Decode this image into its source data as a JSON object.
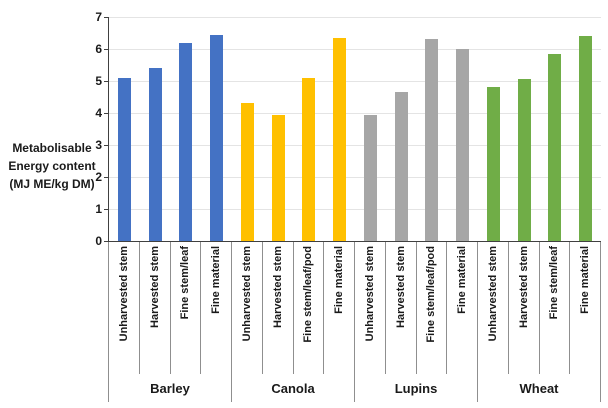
{
  "chart_data": {
    "type": "bar",
    "title": "",
    "ylabel_lines": [
      "Metabolisable",
      "Energy content",
      "(MJ ME/kg DM)"
    ],
    "ylim": [
      0,
      7
    ],
    "yticks": [
      0,
      1,
      2,
      3,
      4,
      5,
      6,
      7
    ],
    "grid": true,
    "legend": "none",
    "groups": [
      {
        "name": "Barley",
        "color": "#4472C4",
        "categories": [
          "Unharvested stem",
          "Harvested stem",
          "Fine stem/leaf",
          "Fine material"
        ],
        "values": [
          5.1,
          5.4,
          6.2,
          6.45
        ]
      },
      {
        "name": "Canola",
        "color": "#FFC000",
        "categories": [
          "Unharvested stem",
          "Harvested stem",
          "Fine stem/leaf/pod",
          "Fine material"
        ],
        "values": [
          4.3,
          3.95,
          5.1,
          6.35
        ]
      },
      {
        "name": "Lupins",
        "color": "#A6A6A6",
        "categories": [
          "Unharvested stem",
          "Harvested stem",
          "Fine stem/leaf/pod",
          "Fine material"
        ],
        "values": [
          3.95,
          4.65,
          6.3,
          6.0
        ]
      },
      {
        "name": "Wheat",
        "color": "#70AD47",
        "categories": [
          "Unharvested stem",
          "Harvested stem",
          "Fine stem/leaf",
          "Fine material"
        ],
        "values": [
          4.8,
          5.05,
          5.85,
          6.4
        ]
      }
    ]
  }
}
